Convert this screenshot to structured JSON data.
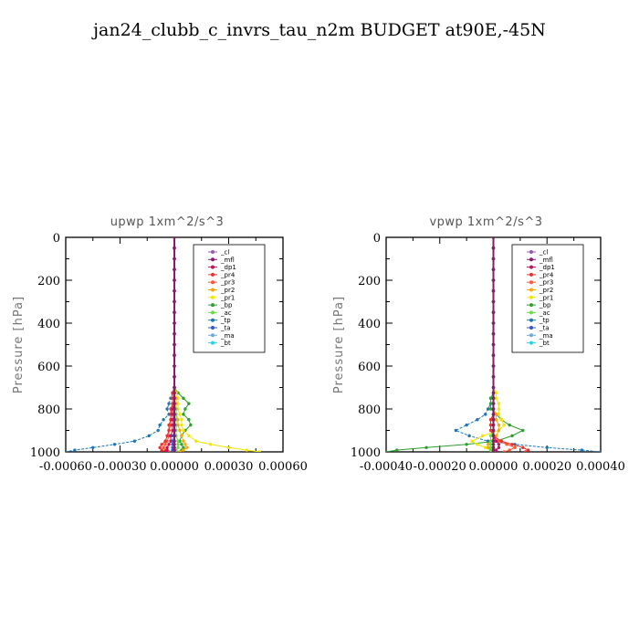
{
  "figure_title": "jan24_clubb_c_invrs_tau_n2m  BUDGET at90E,-45N",
  "legend_entries": [
    {
      "label": "_cl",
      "color": "#9b59b6"
    },
    {
      "label": "_mfl",
      "color": "#8b1a6b"
    },
    {
      "label": "_dp1",
      "color": "#c0145a"
    },
    {
      "label": "_pr4",
      "color": "#e8322e"
    },
    {
      "label": "_pr3",
      "color": "#ff5533"
    },
    {
      "label": "_pr2",
      "color": "#ffa500"
    },
    {
      "label": "_pr1",
      "color": "#f2e600"
    },
    {
      "label": "_bp",
      "color": "#2ca02c"
    },
    {
      "label": "_ac",
      "color": "#66dd44"
    },
    {
      "label": "_tp",
      "color": "#1f77b4"
    },
    {
      "label": "_ta",
      "color": "#3355cc"
    },
    {
      "label": "_ma",
      "color": "#6fa8dc"
    },
    {
      "label": "_bt",
      "color": "#22d3e6"
    }
  ],
  "chart_data": [
    {
      "type": "line",
      "title": "upwp   1xm^2/s^3",
      "ylabel": "Pressure [hPa]",
      "xlabel": "",
      "xlim": [
        -0.0006,
        0.0006
      ],
      "ylim": [
        1000,
        0
      ],
      "y_inverted": true,
      "xticks": [
        -0.0006,
        -0.0003,
        0.0,
        0.0003,
        0.0006
      ],
      "xtick_labels": [
        "-0.00060",
        "-0.00030",
        "0.00000",
        "0.00030",
        "0.00060"
      ],
      "yticks": [
        0,
        200,
        400,
        600,
        800,
        1000
      ],
      "ytick_labels": [
        "0",
        "200",
        "400",
        "600",
        "800",
        "1000"
      ],
      "legend_position": "top-right",
      "pressure": [
        0,
        50,
        100,
        150,
        200,
        250,
        300,
        350,
        400,
        450,
        500,
        550,
        600,
        650,
        700,
        725,
        750,
        775,
        800,
        825,
        850,
        875,
        900,
        925,
        950,
        965,
        980,
        992,
        1000
      ],
      "series": [
        {
          "name": "_tp",
          "values": [
            0,
            0,
            0,
            0,
            0,
            0,
            0,
            0,
            0,
            0,
            0,
            0,
            0,
            0,
            0,
            -1e-05,
            -2e-05,
            -3e-05,
            -4e-05,
            -3e-05,
            -6e-05,
            -8e-05,
            -9e-05,
            -0.00014,
            -0.00022,
            -0.00033,
            -0.00045,
            -0.00055,
            -0.0006
          ]
        },
        {
          "name": "_bp",
          "values": [
            0,
            0,
            0,
            0,
            0,
            0,
            0,
            0,
            0,
            0,
            0,
            0,
            0,
            0,
            0,
            2e-05,
            5e-05,
            8e-05,
            6e-05,
            5e-05,
            8e-05,
            9e-05,
            6e-05,
            4e-05,
            3e-05,
            4e-05,
            5e-05,
            4e-05,
            3e-05
          ]
        },
        {
          "name": "_pr1",
          "values": [
            0,
            0,
            0,
            0,
            0,
            0,
            0,
            0,
            0,
            0,
            0,
            0,
            0,
            0,
            0,
            1e-05,
            2e-05,
            2e-05,
            2e-05,
            3e-05,
            4e-05,
            4e-05,
            5e-05,
            8e-05,
            0.00012,
            0.0002,
            0.0003,
            0.0004,
            0.00047
          ]
        },
        {
          "name": "_pr2",
          "values": [
            0,
            0,
            0,
            0,
            0,
            0,
            0,
            0,
            0,
            0,
            0,
            0,
            0,
            0,
            0,
            0,
            1e-05,
            1e-05,
            1e-05,
            1e-05,
            2e-05,
            2e-05,
            3e-05,
            4e-05,
            5e-05,
            6e-05,
            7e-05,
            5e-05,
            3e-05
          ]
        },
        {
          "name": "_pr3",
          "values": [
            0,
            0,
            0,
            0,
            0,
            0,
            0,
            0,
            0,
            0,
            0,
            0,
            0,
            0,
            0,
            -1e-05,
            -1e-05,
            -1e-05,
            -1e-05,
            -2e-05,
            -2e-05,
            -2e-05,
            -3e-05,
            -3e-05,
            -4e-05,
            -5e-05,
            -6e-05,
            -5e-05,
            -3e-05
          ]
        },
        {
          "name": "_pr4",
          "values": [
            0,
            0,
            0,
            0,
            0,
            0,
            0,
            0,
            0,
            0,
            0,
            0,
            0,
            0,
            0,
            -1e-05,
            -1e-05,
            -1e-05,
            -2e-05,
            -2e-05,
            -2e-05,
            -3e-05,
            -3e-05,
            -4e-05,
            -5e-05,
            -7e-05,
            -8e-05,
            -7e-05,
            -5e-05
          ]
        },
        {
          "name": "_dp1",
          "values": [
            0,
            0,
            0,
            0,
            0,
            0,
            0,
            0,
            0,
            0,
            0,
            0,
            0,
            0,
            0,
            0,
            0,
            0,
            -1e-05,
            -1e-05,
            -1e-05,
            -1e-05,
            -1e-05,
            -2e-05,
            -2e-05,
            -3e-05,
            -4e-05,
            -4e-05,
            -5e-05
          ]
        },
        {
          "name": "_ac",
          "values": [
            0,
            0,
            0,
            0,
            0,
            0,
            0,
            0,
            0,
            0,
            0,
            0,
            0,
            0,
            0,
            0,
            0,
            0,
            1e-05,
            1e-05,
            1e-05,
            1e-05,
            1e-05,
            1e-05,
            2e-05,
            2e-05,
            2e-05,
            1e-05,
            1e-05
          ]
        },
        {
          "name": "_ta",
          "values": [
            0,
            0,
            0,
            0,
            0,
            0,
            0,
            0,
            0,
            0,
            0,
            0,
            0,
            0,
            0,
            0,
            0,
            0,
            0,
            0,
            0,
            0,
            0,
            -1e-05,
            -1e-05,
            -1e-05,
            -1e-05,
            -1e-05,
            -1e-05
          ]
        },
        {
          "name": "_bt",
          "values": [
            0,
            0,
            0,
            0,
            0,
            0,
            0,
            0,
            0,
            0,
            0,
            0,
            0,
            0,
            0,
            0,
            0,
            0,
            0,
            0,
            0,
            0,
            0,
            0,
            0,
            0,
            0,
            0,
            0
          ]
        },
        {
          "name": "_ma",
          "values": [
            0,
            0,
            0,
            0,
            0,
            0,
            0,
            0,
            0,
            0,
            0,
            0,
            0,
            0,
            0,
            0,
            0,
            0,
            0,
            0,
            0,
            0,
            0,
            0,
            0,
            0,
            0,
            0,
            0
          ]
        },
        {
          "name": "_cl",
          "values": [
            0,
            0,
            0,
            0,
            0,
            0,
            0,
            0,
            0,
            0,
            0,
            0,
            0,
            0,
            0,
            0,
            0,
            0,
            0,
            0,
            0,
            0,
            0,
            0,
            0,
            0,
            0,
            0,
            0
          ]
        },
        {
          "name": "_mfl",
          "values": [
            0,
            0,
            0,
            0,
            0,
            0,
            0,
            0,
            0,
            0,
            0,
            0,
            0,
            0,
            0,
            0,
            0,
            0,
            0,
            0,
            0,
            0,
            0,
            0,
            0,
            0,
            0,
            0,
            0
          ]
        }
      ]
    },
    {
      "type": "line",
      "title": "vpwp   1xm^2/s^3",
      "ylabel": "Pressure [hPa]",
      "xlabel": "",
      "xlim": [
        -0.0004,
        0.0004
      ],
      "ylim": [
        1000,
        0
      ],
      "y_inverted": true,
      "xticks": [
        -0.0004,
        -0.0002,
        0.0,
        0.0002,
        0.0004
      ],
      "xtick_labels": [
        "-0.00040",
        "-0.00020",
        "0.00000",
        "0.00020",
        "0.00040"
      ],
      "yticks": [
        0,
        200,
        400,
        600,
        800,
        1000
      ],
      "ytick_labels": [
        "0",
        "200",
        "400",
        "600",
        "800",
        "1000"
      ],
      "legend_position": "top-right",
      "pressure": [
        0,
        50,
        100,
        150,
        200,
        250,
        300,
        350,
        400,
        450,
        500,
        550,
        600,
        650,
        700,
        725,
        750,
        775,
        800,
        825,
        850,
        875,
        900,
        925,
        950,
        965,
        980,
        992,
        1000
      ],
      "series": [
        {
          "name": "_tp",
          "values": [
            0,
            0,
            0,
            0,
            0,
            0,
            0,
            0,
            0,
            0,
            0,
            0,
            0,
            0,
            0,
            0,
            -1e-05,
            -1e-05,
            -2e-05,
            -3e-05,
            -6e-05,
            -0.0001,
            -0.00014,
            -9e-05,
            -2e-05,
            8e-05,
            0.0002,
            0.00033,
            0.0004
          ]
        },
        {
          "name": "_bp",
          "values": [
            0,
            0,
            0,
            0,
            0,
            0,
            0,
            0,
            0,
            0,
            0,
            0,
            0,
            0,
            0,
            0,
            -1e-05,
            -1e-05,
            -1e-05,
            1e-05,
            3e-05,
            6e-05,
            0.00011,
            7e-05,
            1e-05,
            -0.0001,
            -0.00025,
            -0.00036,
            -0.0004
          ]
        },
        {
          "name": "_pr1",
          "values": [
            0,
            0,
            0,
            0,
            0,
            0,
            0,
            0,
            0,
            0,
            0,
            0,
            0,
            0,
            0,
            1e-05,
            1e-05,
            2e-05,
            2e-05,
            2e-05,
            3e-05,
            4e-05,
            2e-05,
            -4e-05,
            -8e-05,
            -6e-05,
            -3e-05,
            -1e-05,
            0
          ]
        },
        {
          "name": "_pr2",
          "values": [
            0,
            0,
            0,
            0,
            0,
            0,
            0,
            0,
            0,
            0,
            0,
            0,
            0,
            0,
            0,
            0,
            0,
            0,
            0,
            1e-05,
            1e-05,
            2e-05,
            2e-05,
            1e-05,
            -1e-05,
            -2e-05,
            -2e-05,
            -1e-05,
            0
          ]
        },
        {
          "name": "_pr3",
          "values": [
            0,
            0,
            0,
            0,
            0,
            0,
            0,
            0,
            0,
            0,
            0,
            0,
            0,
            0,
            0,
            0,
            0,
            0,
            0,
            0,
            -1e-05,
            -1e-05,
            -1e-05,
            0,
            2e-05,
            5e-05,
            8e-05,
            6e-05,
            4e-05
          ]
        },
        {
          "name": "_pr4",
          "values": [
            0,
            0,
            0,
            0,
            0,
            0,
            0,
            0,
            0,
            0,
            0,
            0,
            0,
            0,
            0,
            0,
            0,
            0,
            0,
            0,
            -1e-05,
            -1e-05,
            -1e-05,
            0,
            3e-05,
            7e-05,
            0.00011,
            0.00013,
            0.00012
          ]
        },
        {
          "name": "_dp1",
          "values": [
            0,
            0,
            0,
            0,
            0,
            0,
            0,
            0,
            0,
            0,
            0,
            0,
            0,
            0,
            0,
            0,
            0,
            0,
            0,
            0,
            0,
            0,
            0,
            0,
            1e-05,
            2e-05,
            2e-05,
            1e-05,
            1e-05
          ]
        },
        {
          "name": "_ac",
          "values": [
            0,
            0,
            0,
            0,
            0,
            0,
            0,
            0,
            0,
            0,
            0,
            0,
            0,
            0,
            0,
            0,
            0,
            0,
            0,
            0,
            0,
            0,
            0,
            -1e-05,
            -1e-05,
            -1e-05,
            -1e-05,
            -1e-05,
            0
          ]
        },
        {
          "name": "_ta",
          "values": [
            0,
            0,
            0,
            0,
            0,
            0,
            0,
            0,
            0,
            0,
            0,
            0,
            0,
            0,
            0,
            0,
            0,
            0,
            0,
            0,
            0,
            0,
            0,
            0,
            0,
            0,
            0,
            0,
            0
          ]
        },
        {
          "name": "_bt",
          "values": [
            0,
            0,
            0,
            0,
            0,
            0,
            0,
            0,
            0,
            0,
            0,
            0,
            0,
            0,
            0,
            0,
            0,
            0,
            0,
            0,
            0,
            0,
            0,
            0,
            0,
            0,
            0,
            0,
            0
          ]
        },
        {
          "name": "_ma",
          "values": [
            0,
            0,
            0,
            0,
            0,
            0,
            0,
            0,
            0,
            0,
            0,
            0,
            0,
            0,
            0,
            0,
            0,
            0,
            0,
            0,
            0,
            0,
            0,
            0,
            0,
            0,
            0,
            0,
            0
          ]
        },
        {
          "name": "_cl",
          "values": [
            0,
            0,
            0,
            0,
            0,
            0,
            0,
            0,
            0,
            0,
            0,
            0,
            0,
            0,
            0,
            0,
            0,
            0,
            0,
            0,
            0,
            0,
            0,
            0,
            0,
            0,
            0,
            0,
            0
          ]
        },
        {
          "name": "_mfl",
          "values": [
            0,
            0,
            0,
            0,
            0,
            0,
            0,
            0,
            0,
            0,
            0,
            0,
            0,
            0,
            0,
            0,
            0,
            0,
            0,
            0,
            0,
            0,
            0,
            0,
            0,
            0,
            0,
            0,
            0
          ]
        }
      ]
    }
  ]
}
